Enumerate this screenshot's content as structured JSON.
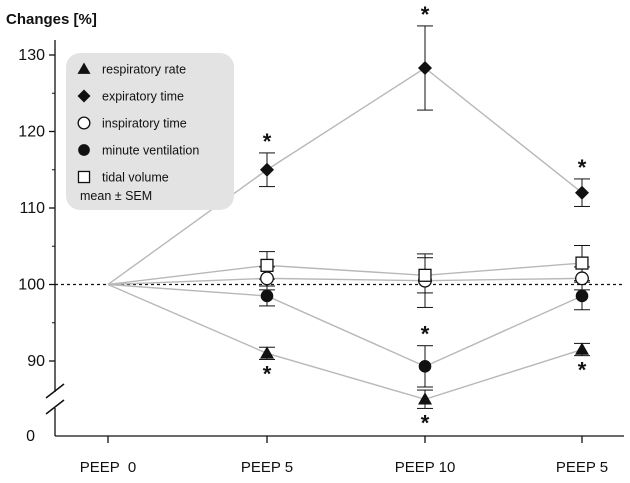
{
  "chart_data": {
    "type": "line",
    "ylabel": "Changes [%]",
    "categories": [
      "PEEP  0",
      "PEEP 5",
      "PEEP 10",
      "PEEP 5"
    ],
    "ylim": [
      80,
      135
    ],
    "yticks": [
      90,
      100,
      110,
      120,
      130
    ],
    "y_axis_break": true,
    "y_origin_label": "0",
    "baseline": 100,
    "legend_position": "top-left",
    "legend_note": "mean ± SEM",
    "line_color": "#b8b8b8",
    "series": [
      {
        "name": "respiratory rate",
        "marker": "triangle",
        "values": [
          100,
          91,
          85,
          91.5
        ],
        "sem": [
          0,
          0.8,
          1.2,
          0.8
        ],
        "significance": [
          false,
          true,
          true,
          true
        ],
        "star_position": "below"
      },
      {
        "name": "expiratory time",
        "marker": "diamond",
        "values": [
          100,
          115,
          128.3,
          112
        ],
        "sem": [
          0,
          2.2,
          5.5,
          1.8
        ],
        "significance": [
          false,
          true,
          true,
          true
        ],
        "star_position": "above"
      },
      {
        "name": "inspiratory time",
        "marker": "circle-open",
        "values": [
          100,
          100.8,
          100.5,
          100.8
        ],
        "sem": [
          0,
          1.5,
          3.5,
          1.5
        ],
        "significance": [
          false,
          false,
          false,
          false
        ],
        "star_position": "above"
      },
      {
        "name": "minute ventilation",
        "marker": "circle-filled",
        "values": [
          100,
          98.5,
          89.3,
          98.5
        ],
        "sem": [
          0,
          1.3,
          2.7,
          1.8
        ],
        "significance": [
          false,
          false,
          true,
          false
        ],
        "star_position": "above"
      },
      {
        "name": "tidal volume",
        "marker": "square-open",
        "values": [
          100,
          102.5,
          101.2,
          102.8
        ],
        "sem": [
          0,
          1.8,
          2.3,
          2.3
        ],
        "significance": [
          false,
          false,
          false,
          false
        ],
        "star_position": "above"
      }
    ]
  }
}
